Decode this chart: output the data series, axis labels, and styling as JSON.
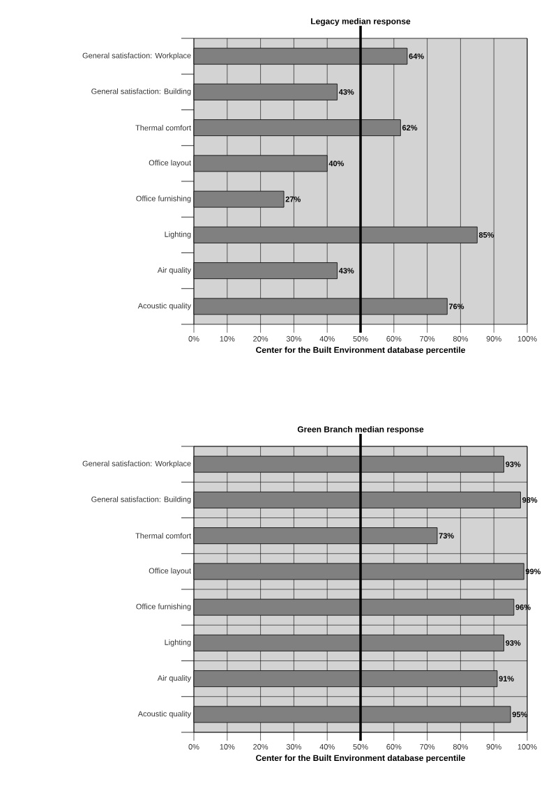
{
  "chart_data": [
    {
      "type": "bar",
      "orientation": "horizontal",
      "title": "Legacy median response",
      "xlabel": "Center for the Built Environment database percentile",
      "categories": [
        "General satisfaction: Workplace",
        "General satisfaction: Building",
        "Thermal comfort",
        "Office layout",
        "Office furnishing",
        "Lighting",
        "Air quality",
        "Acoustic quality"
      ],
      "values": [
        64,
        43,
        62,
        40,
        27,
        85,
        43,
        76
      ],
      "color": "#808080",
      "value_labels": [
        "64%",
        "43%",
        "62%",
        "40%",
        "27%",
        "85%",
        "43%",
        "76%"
      ],
      "xlim": [
        0,
        100
      ],
      "xticks": [
        {
          "value": 0,
          "label": "0%"
        },
        {
          "value": 10,
          "label": "10%"
        },
        {
          "value": 20,
          "label": "20%"
        },
        {
          "value": 30,
          "label": "30%"
        },
        {
          "value": 40,
          "label": "40%"
        },
        {
          "value": 50,
          "label": "50%"
        },
        {
          "value": 60,
          "label": "60%"
        },
        {
          "value": 70,
          "label": "70%"
        },
        {
          "value": 80,
          "label": "80%"
        },
        {
          "value": 90,
          "label": "90%"
        },
        {
          "value": 100,
          "label": "100%"
        }
      ],
      "ref_lines": [
        {
          "axis": "x",
          "value": 50,
          "color": "#000000"
        }
      ],
      "grid": "x"
    },
    {
      "type": "bar",
      "orientation": "horizontal",
      "title": "Green Branch median response",
      "xlabel": "Center for the Built Environment database percentile",
      "categories": [
        "General satisfaction: Workplace",
        "General satisfaction: Building",
        "Thermal comfort",
        "Office layout",
        "Office furnishing",
        "Lighting",
        "Air quality",
        "Acoustic quality"
      ],
      "values": [
        93,
        98,
        73,
        99,
        96,
        93,
        91,
        95
      ],
      "color": "#808080",
      "value_labels": [
        "93%",
        "98%",
        "73%",
        "99%",
        "96%",
        "93%",
        "91%",
        "95%"
      ],
      "xlim": [
        0,
        100
      ],
      "xticks": [
        {
          "value": 0,
          "label": "0%"
        },
        {
          "value": 10,
          "label": "10%"
        },
        {
          "value": 20,
          "label": "20%"
        },
        {
          "value": 30,
          "label": "30%"
        },
        {
          "value": 40,
          "label": "40%"
        },
        {
          "value": 50,
          "label": "50%"
        },
        {
          "value": 60,
          "label": "60%"
        },
        {
          "value": 70,
          "label": "70%"
        },
        {
          "value": 80,
          "label": "80%"
        },
        {
          "value": 90,
          "label": "90%"
        },
        {
          "value": 100,
          "label": "100%"
        }
      ],
      "ref_lines": [
        {
          "axis": "x",
          "value": 50,
          "color": "#000000"
        }
      ],
      "grid": true
    }
  ]
}
